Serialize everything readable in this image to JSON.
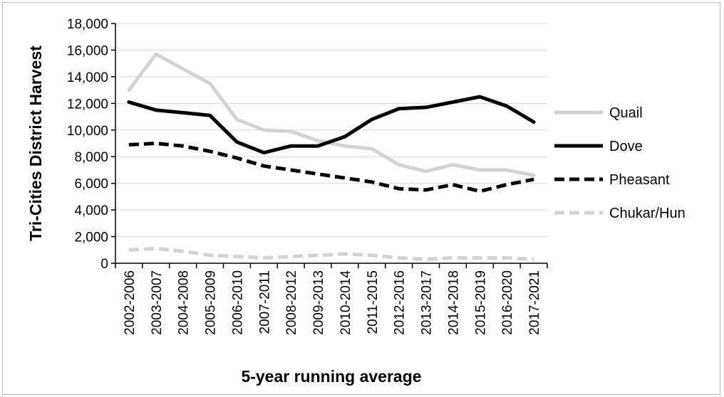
{
  "chart_data": {
    "type": "line",
    "title": "",
    "xlabel": "5-year running average",
    "ylabel": "Tri-Cities District Harvest",
    "ylim": [
      0,
      18000
    ],
    "yticks": [
      "0",
      "2,000",
      "4,000",
      "6,000",
      "8,000",
      "10,000",
      "12,000",
      "14,000",
      "16,000",
      "18,000"
    ],
    "grid": true,
    "legend_position": "right",
    "categories": [
      "2002-2006",
      "2003-2007",
      "2004-2008",
      "2005-2009",
      "2006-2010",
      "2007-2011",
      "2008-2012",
      "2009-2013",
      "2010-2014",
      "2011-2015",
      "2012-2016",
      "2013-2017",
      "2014-2018",
      "2015-2019",
      "2016-2020",
      "2017-2021"
    ],
    "series": [
      {
        "name": "Quail",
        "color": "#d3d3d3",
        "dash": "solid",
        "values": [
          13000,
          15700,
          14600,
          13500,
          10800,
          10000,
          9900,
          9200,
          8800,
          8600,
          7400,
          6900,
          7400,
          7000,
          7000,
          6600
        ]
      },
      {
        "name": "Dove",
        "color": "#000000",
        "dash": "solid",
        "values": [
          12100,
          11500,
          11300,
          11100,
          9100,
          8300,
          8800,
          8800,
          9500,
          10800,
          11600,
          11700,
          12100,
          12500,
          11800,
          10600
        ]
      },
      {
        "name": "Pheasant",
        "color": "#000000",
        "dash": "dashed",
        "values": [
          8900,
          9000,
          8800,
          8400,
          7900,
          7300,
          7000,
          6700,
          6400,
          6100,
          5600,
          5500,
          5900,
          5400,
          5900,
          6300
        ]
      },
      {
        "name": "Chukar/Hun",
        "color": "#d3d3d3",
        "dash": "dashed",
        "values": [
          1000,
          1100,
          900,
          600,
          500,
          400,
          500,
          600,
          700,
          600,
          400,
          300,
          400,
          400,
          400,
          300
        ]
      }
    ]
  }
}
